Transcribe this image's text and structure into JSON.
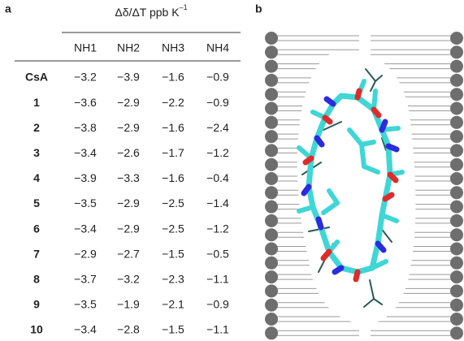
{
  "panel_a": {
    "label": "a",
    "header": {
      "text": "Δδ/ΔT ppb K",
      "superscript": "–1"
    },
    "columns": [
      "NH1",
      "NH2",
      "NH3",
      "NH4"
    ],
    "rows": [
      {
        "name": "CsA",
        "values": [
          "−3.2",
          "−3.9",
          "−1.6",
          "−0.9"
        ]
      },
      {
        "name": "1",
        "values": [
          "−3.6",
          "−2.9",
          "−2.2",
          "−0.9"
        ]
      },
      {
        "name": "2",
        "values": [
          "−3.8",
          "−2.9",
          "−1.6",
          "−2.4"
        ]
      },
      {
        "name": "3",
        "values": [
          "−3.4",
          "−2.6",
          "−1.7",
          "−1.2"
        ]
      },
      {
        "name": "4",
        "values": [
          "−3.9",
          "−3.3",
          "−1.6",
          "−0.4"
        ]
      },
      {
        "name": "5",
        "values": [
          "−3.5",
          "−2.9",
          "−2.5",
          "−1.4"
        ]
      },
      {
        "name": "6",
        "values": [
          "−3.4",
          "−2.9",
          "−2.5",
          "−1.2"
        ]
      },
      {
        "name": "7",
        "values": [
          "−2.9",
          "−2.7",
          "−1.5",
          "−0.5"
        ]
      },
      {
        "name": "8",
        "values": [
          "−3.7",
          "−3.2",
          "−2.3",
          "−1.1"
        ]
      },
      {
        "name": "9",
        "values": [
          "−3.5",
          "−1.9",
          "−2.1",
          "−0.9"
        ]
      },
      {
        "name": "10",
        "values": [
          "−3.4",
          "−2.8",
          "−1.5",
          "−1.1"
        ]
      }
    ]
  },
  "panel_b": {
    "label": "b"
  }
}
